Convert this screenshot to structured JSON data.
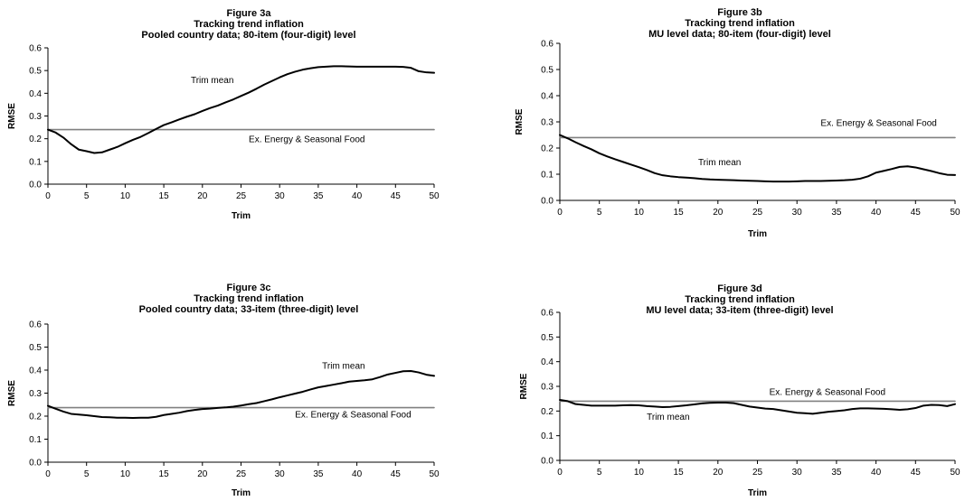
{
  "chart_data": [
    {
      "type": "line",
      "title": [
        "Figure 3a",
        "Tracking trend inflation",
        "Pooled country data; 80-item (four-digit) level"
      ],
      "xlabel": "Trim",
      "ylabel": "RMSE",
      "xlim": [
        0,
        50
      ],
      "ylim": [
        0,
        0.6
      ],
      "x_ticks": [
        "0",
        "5",
        "10",
        "15",
        "20",
        "25",
        "30",
        "35",
        "40",
        "45",
        "50"
      ],
      "y_ticks": [
        "0.0",
        "0.1",
        "0.2",
        "0.3",
        "0.4",
        "0.5",
        "0.6"
      ],
      "grid": false,
      "series": [
        {
          "name": "Trim mean",
          "color": "#000000",
          "x": [
            0,
            1,
            2,
            3,
            4,
            5,
            6,
            7,
            8,
            9,
            10,
            11,
            12,
            13,
            14,
            15,
            16,
            17,
            18,
            19,
            20,
            21,
            22,
            23,
            24,
            25,
            26,
            27,
            28,
            29,
            30,
            31,
            32,
            33,
            34,
            35,
            36,
            37,
            38,
            39,
            40,
            41,
            42,
            43,
            44,
            45,
            46,
            47,
            48,
            49,
            50
          ],
          "y": [
            0.24,
            0.227,
            0.205,
            0.176,
            0.152,
            0.145,
            0.137,
            0.14,
            0.152,
            0.164,
            0.18,
            0.195,
            0.208,
            0.225,
            0.243,
            0.26,
            0.272,
            0.285,
            0.297,
            0.308,
            0.322,
            0.335,
            0.346,
            0.36,
            0.373,
            0.388,
            0.403,
            0.42,
            0.438,
            0.454,
            0.47,
            0.484,
            0.495,
            0.504,
            0.51,
            0.515,
            0.517,
            0.519,
            0.519,
            0.518,
            0.517,
            0.517,
            0.517,
            0.517,
            0.517,
            0.517,
            0.516,
            0.512,
            0.497,
            0.492,
            0.49
          ]
        },
        {
          "name": "Ex. Energy & Seasonal Food",
          "color": "#808080",
          "x": [
            0,
            50
          ],
          "y": [
            0.24,
            0.24
          ]
        }
      ],
      "annotations": [
        {
          "text": "Trim mean",
          "x": 18.5,
          "y": 0.445
        },
        {
          "text": "Ex. Energy & Seasonal Food",
          "x": 26,
          "y": 0.185
        }
      ]
    },
    {
      "type": "line",
      "title": [
        "Figure 3b",
        "Tracking trend inflation",
        "MU level data; 80-item (four-digit) level"
      ],
      "xlabel": "Trim",
      "ylabel": "RMSE",
      "xlim": [
        0,
        50
      ],
      "ylim": [
        0,
        0.6
      ],
      "x_ticks": [
        "0",
        "5",
        "10",
        "15",
        "20",
        "25",
        "30",
        "35",
        "40",
        "45",
        "50"
      ],
      "y_ticks": [
        "0.0",
        "0.1",
        "0.2",
        "0.3",
        "0.4",
        "0.5",
        "0.6"
      ],
      "grid": false,
      "series": [
        {
          "name": "Trim mean",
          "color": "#000000",
          "x": [
            0,
            1,
            2,
            3,
            4,
            5,
            6,
            7,
            8,
            9,
            10,
            11,
            12,
            13,
            14,
            15,
            16,
            17,
            18,
            19,
            20,
            21,
            22,
            23,
            24,
            25,
            26,
            27,
            28,
            29,
            30,
            31,
            32,
            33,
            34,
            35,
            36,
            37,
            38,
            39,
            40,
            41,
            42,
            43,
            44,
            45,
            46,
            47,
            48,
            49,
            50
          ],
          "y": [
            0.25,
            0.237,
            0.222,
            0.208,
            0.195,
            0.18,
            0.168,
            0.157,
            0.147,
            0.137,
            0.127,
            0.116,
            0.104,
            0.096,
            0.092,
            0.089,
            0.087,
            0.085,
            0.082,
            0.08,
            0.079,
            0.078,
            0.077,
            0.076,
            0.075,
            0.074,
            0.073,
            0.072,
            0.072,
            0.072,
            0.073,
            0.074,
            0.074,
            0.074,
            0.075,
            0.076,
            0.077,
            0.079,
            0.083,
            0.092,
            0.106,
            0.113,
            0.12,
            0.128,
            0.13,
            0.126,
            0.119,
            0.112,
            0.104,
            0.098,
            0.097
          ]
        },
        {
          "name": "Ex. Energy & Seasonal Food",
          "color": "#808080",
          "x": [
            0,
            50
          ],
          "y": [
            0.24,
            0.24
          ]
        }
      ],
      "annotations": [
        {
          "text": "Ex. Energy & Seasonal Food",
          "x": 33,
          "y": 0.285
        },
        {
          "text": "Trim mean",
          "x": 17.5,
          "y": 0.135
        }
      ]
    },
    {
      "type": "line",
      "title": [
        "Figure 3c",
        "Tracking trend inflation",
        "Pooled country data; 33-item (three-digit) level"
      ],
      "xlabel": "Trim",
      "ylabel": "RMSE",
      "xlim": [
        0,
        50
      ],
      "ylim": [
        0,
        0.6
      ],
      "x_ticks": [
        "0",
        "5",
        "10",
        "15",
        "20",
        "25",
        "30",
        "35",
        "40",
        "45",
        "50"
      ],
      "y_ticks": [
        "0.0",
        "0.1",
        "0.2",
        "0.3",
        "0.4",
        "0.5",
        "0.6"
      ],
      "grid": false,
      "series": [
        {
          "name": "Trim mean",
          "color": "#000000",
          "x": [
            0,
            1,
            2,
            3,
            4,
            5,
            6,
            7,
            8,
            9,
            10,
            11,
            12,
            13,
            14,
            15,
            16,
            17,
            18,
            19,
            20,
            21,
            22,
            23,
            24,
            25,
            26,
            27,
            28,
            29,
            30,
            31,
            32,
            33,
            34,
            35,
            36,
            37,
            38,
            39,
            40,
            41,
            42,
            43,
            44,
            45,
            46,
            47,
            48,
            49,
            50
          ],
          "y": [
            0.245,
            0.232,
            0.22,
            0.21,
            0.207,
            0.204,
            0.2,
            0.196,
            0.195,
            0.193,
            0.193,
            0.192,
            0.193,
            0.193,
            0.197,
            0.205,
            0.21,
            0.215,
            0.222,
            0.227,
            0.231,
            0.233,
            0.236,
            0.238,
            0.241,
            0.246,
            0.252,
            0.257,
            0.265,
            0.273,
            0.282,
            0.29,
            0.298,
            0.306,
            0.316,
            0.325,
            0.331,
            0.337,
            0.343,
            0.35,
            0.353,
            0.356,
            0.36,
            0.37,
            0.381,
            0.388,
            0.395,
            0.396,
            0.39,
            0.38,
            0.375
          ]
        },
        {
          "name": "Ex. Energy & Seasonal Food",
          "color": "#808080",
          "x": [
            0,
            50
          ],
          "y": [
            0.237,
            0.237
          ]
        }
      ],
      "annotations": [
        {
          "text": "Trim mean",
          "x": 35.5,
          "y": 0.405
        },
        {
          "text": "Ex. Energy & Seasonal Food",
          "x": 32,
          "y": 0.195
        }
      ]
    },
    {
      "type": "line",
      "title": [
        "Figure 3d",
        "Tracking trend inflation",
        "MU level data; 33-item (three-digit) level"
      ],
      "xlabel": "Trim",
      "ylabel": "RMSE",
      "xlim": [
        0,
        50
      ],
      "ylim": [
        0,
        0.6
      ],
      "x_ticks": [
        "0",
        "5",
        "10",
        "15",
        "20",
        "25",
        "30",
        "35",
        "40",
        "45",
        "50"
      ],
      "y_ticks": [
        "0.0",
        "0.1",
        "0.2",
        "0.3",
        "0.4",
        "0.5",
        "0.6"
      ],
      "grid": false,
      "series": [
        {
          "name": "Trim mean",
          "color": "#000000",
          "x": [
            0,
            1,
            2,
            3,
            4,
            5,
            6,
            7,
            8,
            9,
            10,
            11,
            12,
            13,
            14,
            15,
            16,
            17,
            18,
            19,
            20,
            21,
            22,
            23,
            24,
            25,
            26,
            27,
            28,
            29,
            30,
            31,
            32,
            33,
            34,
            35,
            36,
            37,
            38,
            39,
            40,
            41,
            42,
            43,
            44,
            45,
            46,
            47,
            48,
            49,
            50
          ],
          "y": [
            0.245,
            0.24,
            0.228,
            0.225,
            0.222,
            0.222,
            0.222,
            0.222,
            0.223,
            0.224,
            0.223,
            0.22,
            0.218,
            0.216,
            0.217,
            0.22,
            0.223,
            0.227,
            0.231,
            0.233,
            0.234,
            0.234,
            0.232,
            0.225,
            0.218,
            0.214,
            0.21,
            0.208,
            0.203,
            0.198,
            0.193,
            0.191,
            0.189,
            0.193,
            0.197,
            0.2,
            0.203,
            0.208,
            0.211,
            0.211,
            0.21,
            0.209,
            0.207,
            0.205,
            0.207,
            0.212,
            0.222,
            0.225,
            0.224,
            0.22,
            0.228
          ]
        },
        {
          "name": "Ex. Energy & Seasonal Food",
          "color": "#808080",
          "x": [
            0,
            50
          ],
          "y": [
            0.24,
            0.24
          ]
        }
      ],
      "annotations": [
        {
          "text": "Ex. Energy & Seasonal Food",
          "x": 26.5,
          "y": 0.265
        },
        {
          "text": "Trim mean",
          "x": 11,
          "y": 0.165
        }
      ]
    }
  ]
}
